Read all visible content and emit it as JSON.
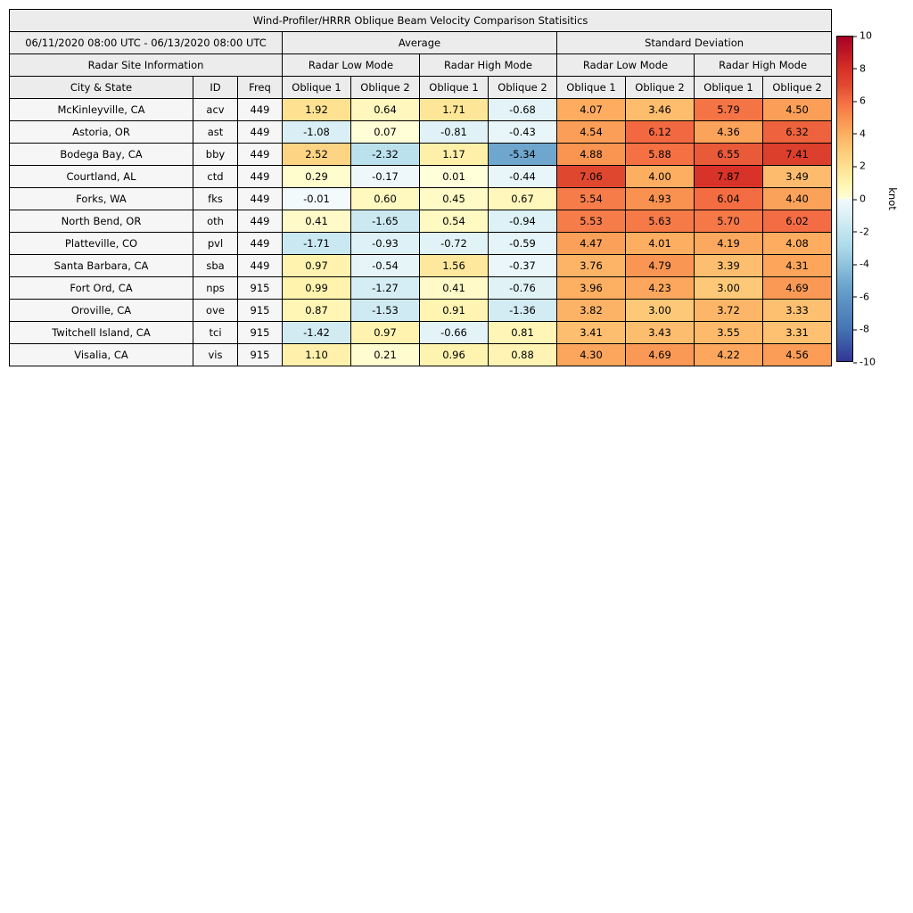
{
  "chart_data": {
    "type": "heatmap-table",
    "title": "Wind-Profiler/HRRR Oblique Beam Velocity Comparison Statisitics",
    "period": "06/11/2020 08:00 UTC - 06/13/2020 08:00 UTC",
    "group_headers": {
      "average": "Average",
      "standard_deviation": "Standard Deviation",
      "site_info": "Radar Site Information",
      "low_mode": "Radar Low Mode",
      "high_mode": "Radar High Mode"
    },
    "column_headers": {
      "city": "City & State",
      "id": "ID",
      "freq": "Freq",
      "oblique1": "Oblique 1",
      "oblique2": "Oblique 2"
    },
    "value_columns": [
      "avg_low_oblique1",
      "avg_low_oblique2",
      "avg_high_oblique1",
      "avg_high_oblique2",
      "std_low_oblique1",
      "std_low_oblique2",
      "std_high_oblique1",
      "std_high_oblique2"
    ],
    "rows": [
      {
        "city": "McKinleyville, CA",
        "id": "acv",
        "freq": "449",
        "values": [
          1.92,
          0.64,
          1.71,
          -0.68,
          4.07,
          3.46,
          5.79,
          4.5
        ]
      },
      {
        "city": "Astoria, OR",
        "id": "ast",
        "freq": "449",
        "values": [
          -1.08,
          0.07,
          -0.81,
          -0.43,
          4.54,
          6.12,
          4.36,
          6.32
        ]
      },
      {
        "city": "Bodega Bay, CA",
        "id": "bby",
        "freq": "449",
        "values": [
          2.52,
          -2.32,
          1.17,
          -5.34,
          4.88,
          5.88,
          6.55,
          7.41
        ]
      },
      {
        "city": "Courtland, AL",
        "id": "ctd",
        "freq": "449",
        "values": [
          0.29,
          -0.17,
          0.01,
          -0.44,
          7.06,
          4.0,
          7.87,
          3.49
        ]
      },
      {
        "city": "Forks, WA",
        "id": "fks",
        "freq": "449",
        "values": [
          -0.01,
          0.6,
          0.45,
          0.67,
          5.54,
          4.93,
          6.04,
          4.4
        ]
      },
      {
        "city": "North Bend, OR",
        "id": "oth",
        "freq": "449",
        "values": [
          0.41,
          -1.65,
          0.54,
          -0.94,
          5.53,
          5.63,
          5.7,
          6.02
        ]
      },
      {
        "city": "Platteville, CO",
        "id": "pvl",
        "freq": "449",
        "values": [
          -1.71,
          -0.93,
          -0.72,
          -0.59,
          4.47,
          4.01,
          4.19,
          4.08
        ]
      },
      {
        "city": "Santa Barbara, CA",
        "id": "sba",
        "freq": "449",
        "values": [
          0.97,
          -0.54,
          1.56,
          -0.37,
          3.76,
          4.79,
          3.39,
          4.31
        ]
      },
      {
        "city": "Fort Ord, CA",
        "id": "nps",
        "freq": "915",
        "values": [
          0.99,
          -1.27,
          0.41,
          -0.76,
          3.96,
          4.23,
          3.0,
          4.69
        ]
      },
      {
        "city": "Oroville, CA",
        "id": "ove",
        "freq": "915",
        "values": [
          0.87,
          -1.53,
          0.91,
          -1.36,
          3.82,
          3.0,
          3.72,
          3.33
        ]
      },
      {
        "city": "Twitchell Island, CA",
        "id": "tci",
        "freq": "915",
        "values": [
          -1.42,
          0.97,
          -0.66,
          0.81,
          3.41,
          3.43,
          3.55,
          3.31
        ]
      },
      {
        "city": "Visalia, CA",
        "id": "vis",
        "freq": "915",
        "values": [
          1.1,
          0.21,
          0.96,
          0.88,
          4.3,
          4.69,
          4.22,
          4.56
        ]
      }
    ],
    "colorbar": {
      "label": "knot",
      "vmin": -10,
      "vmax": 10,
      "ticks": [
        10,
        8,
        6,
        4,
        2,
        0,
        -2,
        -4,
        -6,
        -8,
        -10
      ]
    },
    "colormap_anchors": [
      {
        "v": -10,
        "c": "#313695"
      },
      {
        "v": -8,
        "c": "#4575b4"
      },
      {
        "v": -6,
        "c": "#6197c6"
      },
      {
        "v": -5,
        "c": "#74add1"
      },
      {
        "v": -4,
        "c": "#92c4dd"
      },
      {
        "v": -3,
        "c": "#abd9e9"
      },
      {
        "v": -2,
        "c": "#c3e5ef"
      },
      {
        "v": -1,
        "c": "#dcf0f6"
      },
      {
        "v": -0.001,
        "c": "#f2fafb"
      },
      {
        "v": 0,
        "c": "#ffffd9"
      },
      {
        "v": 1,
        "c": "#fff3ae"
      },
      {
        "v": 2,
        "c": "#fee090"
      },
      {
        "v": 3,
        "c": "#fdc978"
      },
      {
        "v": 4,
        "c": "#fdae61"
      },
      {
        "v": 5,
        "c": "#f9904f"
      },
      {
        "v": 6,
        "c": "#f46d43"
      },
      {
        "v": 7,
        "c": "#e04a30"
      },
      {
        "v": 8,
        "c": "#d73027"
      },
      {
        "v": 10,
        "c": "#a50026"
      }
    ]
  }
}
